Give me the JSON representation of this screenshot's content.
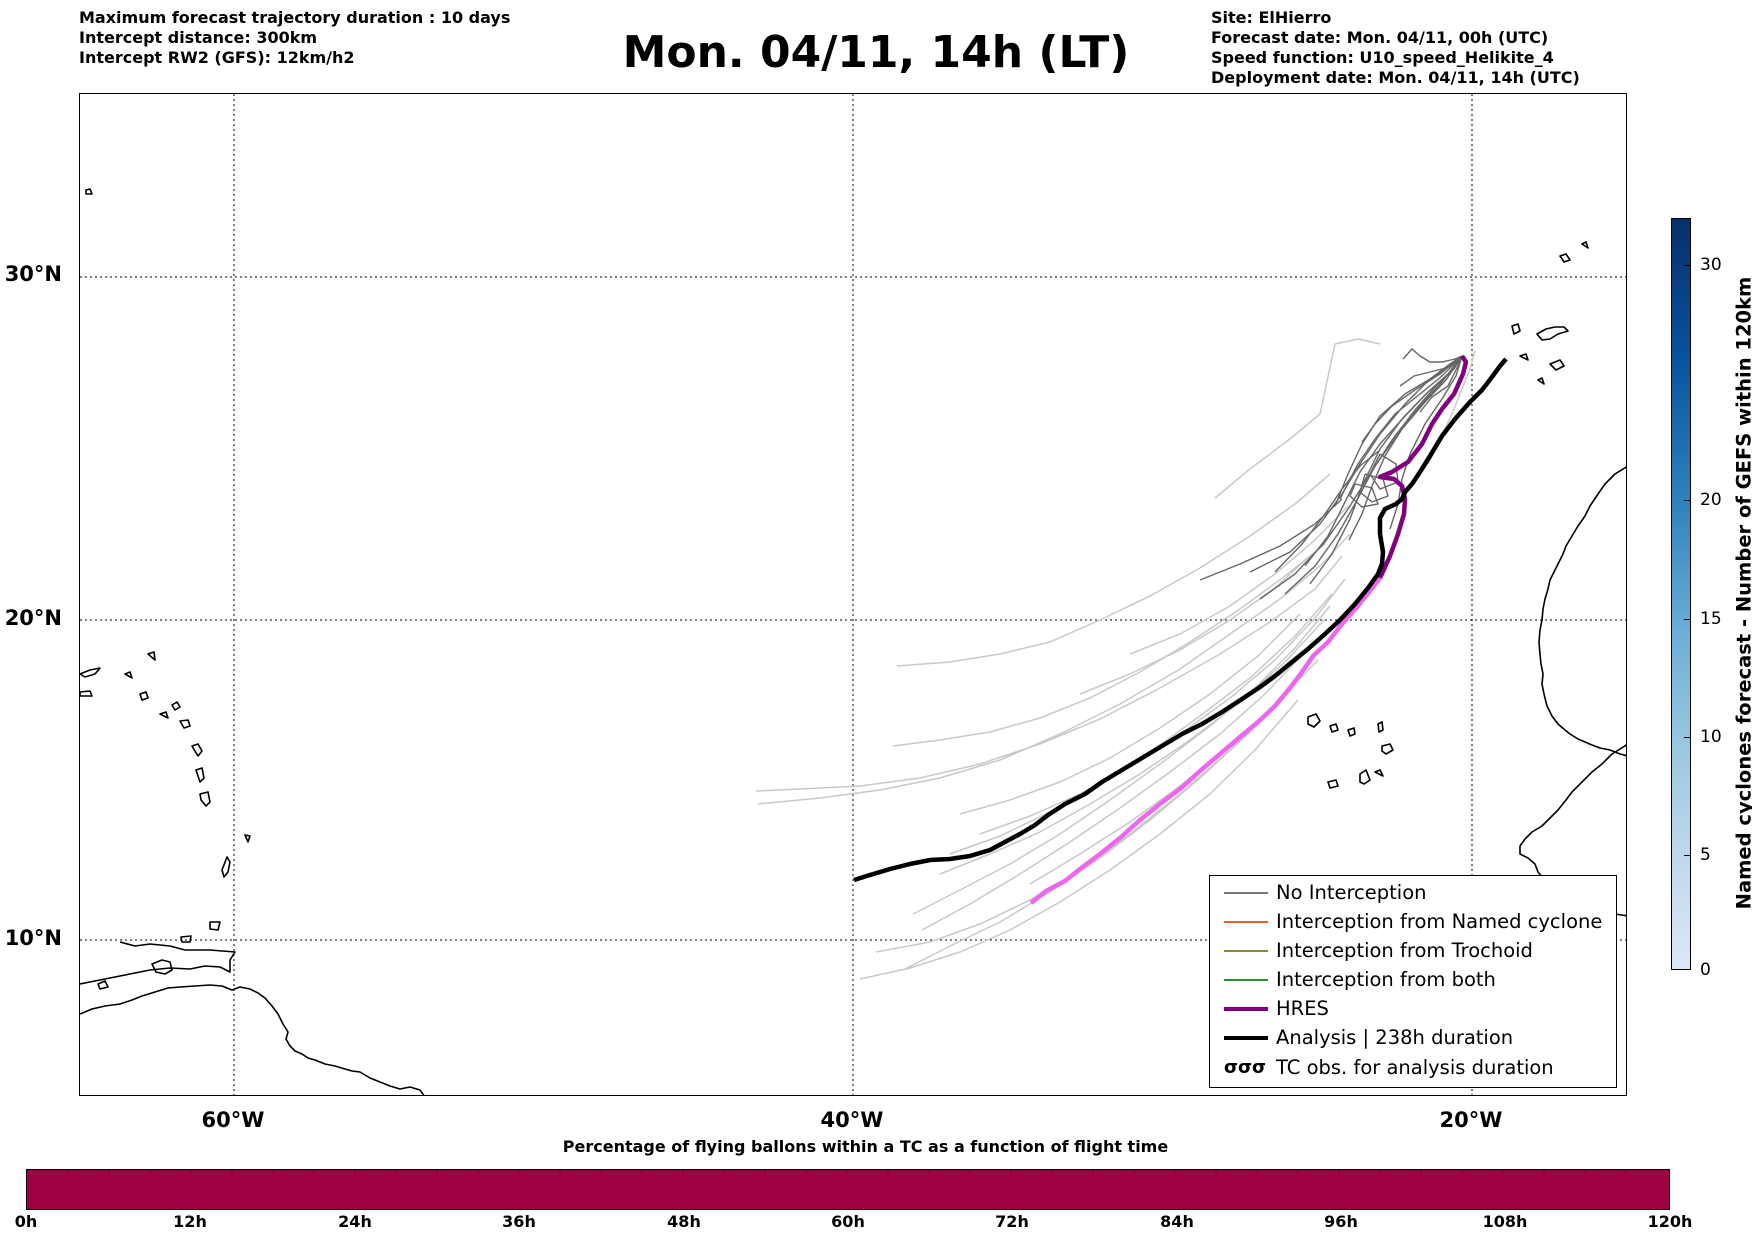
{
  "header_left": [
    "Maximum forecast trajectory duration : 10 days",
    "Intercept distance: 300km",
    "Intercept RW2 (GFS):  12km/h2"
  ],
  "title": "Mon. 04/11, 14h (LT)",
  "header_right": [
    "Site: ElHierro",
    "Forecast date: Mon. 04/11, 00h (UTC)",
    "Speed function: U10_speed_Helikite_4",
    "Deployment date: Mon. 04/11, 14h (UTC)"
  ],
  "map": {
    "lat_labels": [
      "30°N",
      "20°N",
      "10°N"
    ],
    "lon_labels": [
      "60°W",
      "40°W",
      "20°W"
    ],
    "colors": {
      "ensemble_light": "#c8c8c8",
      "ensemble_dark": "#666666",
      "hres": "#800080",
      "hres_continuation": "#ee66ee",
      "analysis": "#000000",
      "coast": "#000000"
    }
  },
  "legend": {
    "items": [
      {
        "label": "No Interception",
        "color": "#777777",
        "width": 1.5
      },
      {
        "label": "Interception from Named cyclone",
        "color": "#e8602c",
        "width": 1.5
      },
      {
        "label": "Interception from Trochoid",
        "color": "#8a8a2a",
        "width": 1.5
      },
      {
        "label": "Interception from both",
        "color": "#2e8b2e",
        "width": 1.5
      },
      {
        "label": "HRES",
        "color": "#800080",
        "width": 4
      },
      {
        "label": "Analysis | 238h duration",
        "color": "#000000",
        "width": 4
      },
      {
        "label": "TC obs. for analysis duration",
        "icon": "cyclone-symbols-icon",
        "symbol": "σσσ"
      }
    ]
  },
  "colorbar_vertical": {
    "label": "Named cyclones forecast - Number of GEFS within 120km",
    "ticks": [
      "0",
      "5",
      "10",
      "15",
      "20",
      "30"
    ],
    "colors": [
      "#dbe8f6",
      "#9ecae1",
      "#3182bd",
      "#08306b"
    ]
  },
  "colorbar_horizontal": {
    "title": "Percentage of flying ballons within a TC as a function of flight time",
    "ticks": [
      "0h",
      "12h",
      "24h",
      "36h",
      "48h",
      "60h",
      "72h",
      "84h",
      "96h",
      "108h",
      "120h"
    ],
    "color": "#9e0142"
  }
}
